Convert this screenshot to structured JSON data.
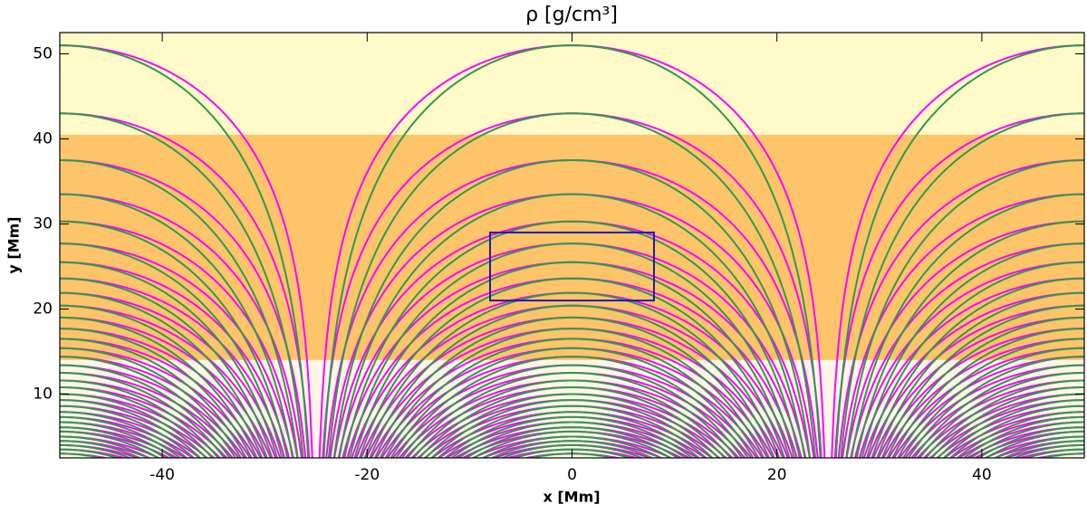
{
  "chart_data": {
    "type": "fieldlines",
    "title": "ρ [g/cm³]",
    "x_label": "x [Mm]",
    "y_label": "y [Mm]",
    "xlim": [
      -50,
      50
    ],
    "ylim": [
      2.5,
      52.5
    ],
    "xticks": [
      -40,
      -20,
      0,
      20,
      40
    ],
    "yticks": [
      10,
      20,
      30,
      40,
      50
    ],
    "background": [
      {
        "from": 40.5,
        "to": 52.5,
        "color": "#fffac8"
      },
      {
        "from": 14,
        "to": 40.5,
        "color": "#fec46a"
      },
      {
        "from": 2.5,
        "to": 14,
        "color": "#fff6e6"
      }
    ],
    "apex": [
      51,
      43,
      37.5,
      33.5,
      30.3,
      27.7,
      25.5,
      23.6,
      21.9,
      20.4,
      19,
      17.7,
      16.5,
      15.4,
      14.4,
      13.4,
      12.5,
      11.6,
      10.8,
      10,
      9.3,
      8.6,
      7.9,
      7.3,
      6.7,
      6.1,
      5.6,
      5,
      4.5,
      4,
      3.5,
      3
    ],
    "series": [
      {
        "color": "#ff00ff"
      },
      {
        "color": "#2e9a4c"
      }
    ],
    "box": {
      "x": [
        -8,
        8
      ],
      "y": [
        21,
        29
      ],
      "color": "#1c1ca8"
    }
  }
}
